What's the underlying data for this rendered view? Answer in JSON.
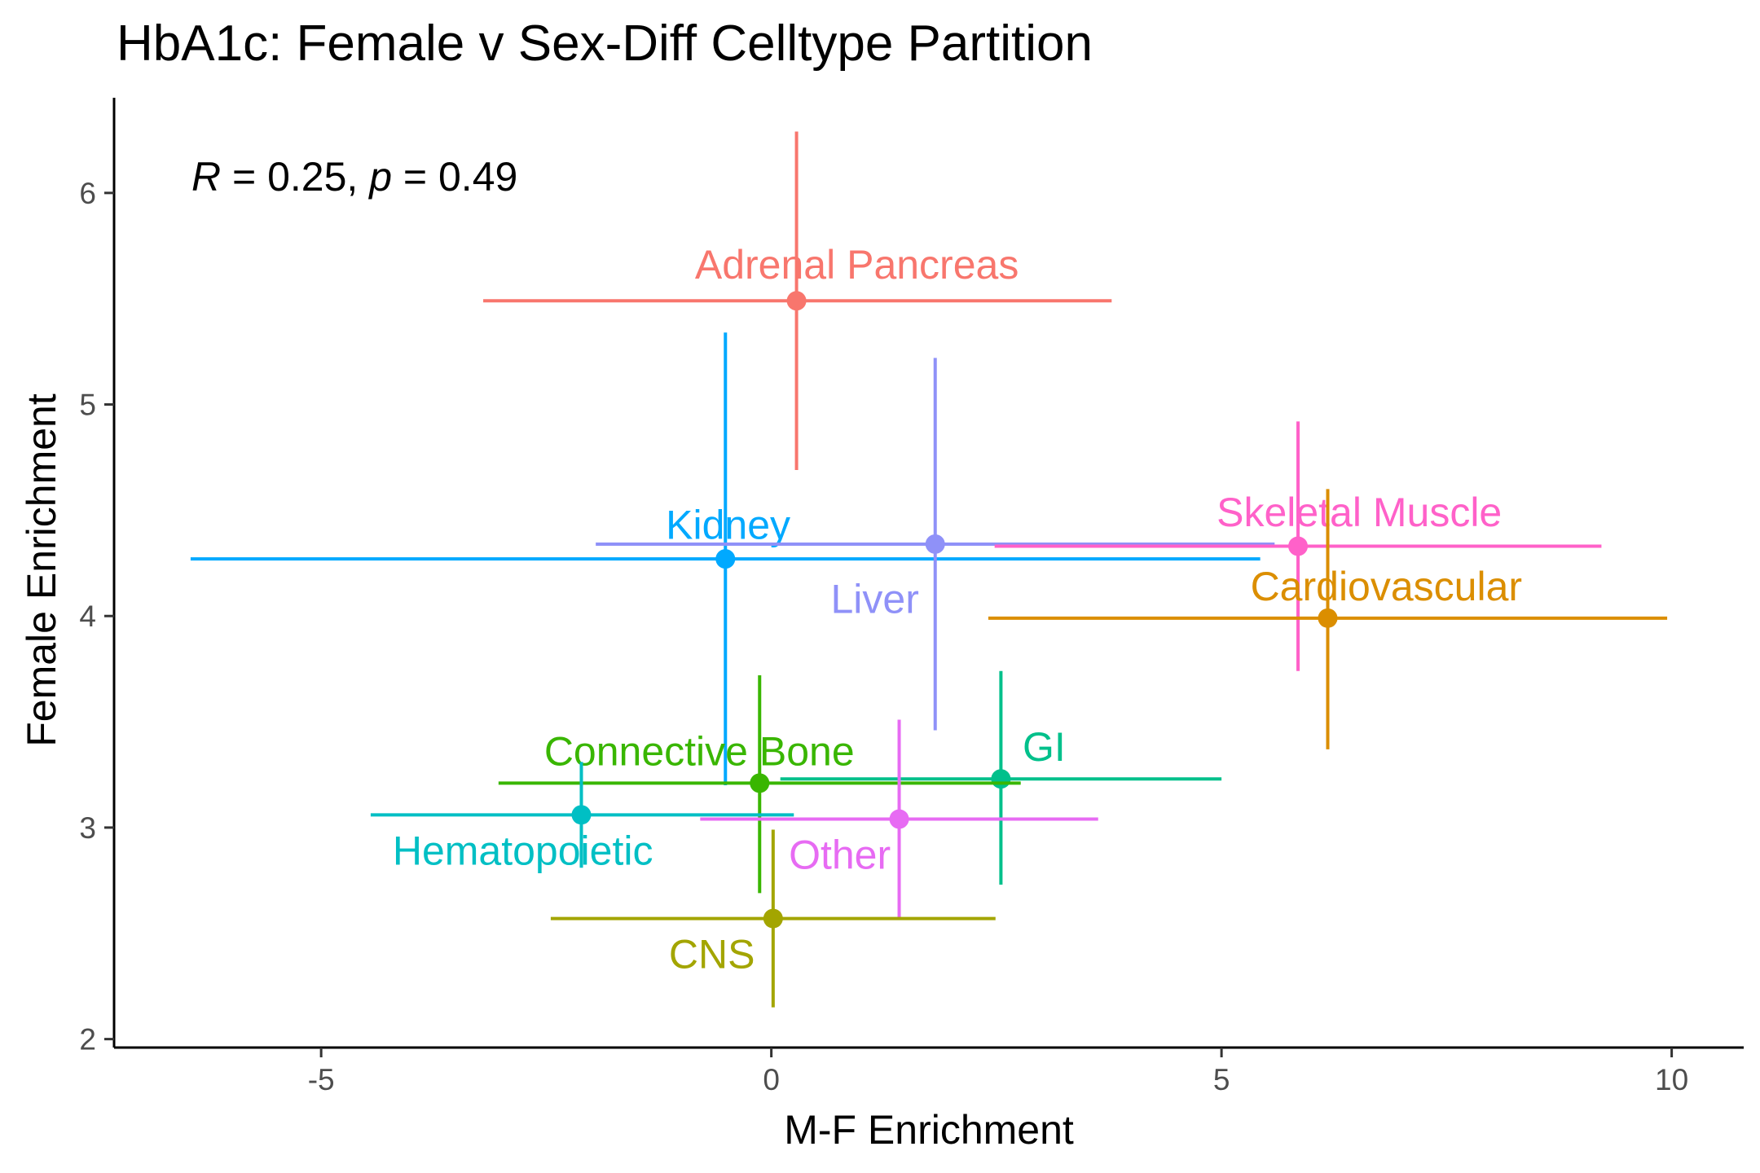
{
  "chart_data": {
    "type": "scatter",
    "title": "HbA1c: Female v Sex-Diff Celltype Partition",
    "xlabel": "M-F Enrichment",
    "ylabel": "Female Enrichment",
    "xlim": [
      -7.3,
      10.8
    ],
    "ylim": [
      1.96,
      6.45
    ],
    "x_ticks": [
      -5,
      0,
      5,
      10
    ],
    "y_ticks": [
      2,
      3,
      4,
      5,
      6
    ],
    "x_tick_labels": [
      "-5",
      "0",
      "5",
      "10"
    ],
    "y_tick_labels": [
      "2",
      "3",
      "4",
      "5",
      "6"
    ],
    "grid": false,
    "legend": "none",
    "annotation": {
      "r_symbol": "R",
      "r_text": " = 0.25, ",
      "p_symbol": "p",
      "p_text": " = 0.49"
    },
    "points": [
      {
        "label": "Adrenal Pancreas",
        "color": "#F8766D",
        "x": 0.28,
        "y": 5.49,
        "xmin": -3.2,
        "xmax": 3.78,
        "ymin": 4.69,
        "ymax": 6.29,
        "label_x": 0.95,
        "label_y": 5.66
      },
      {
        "label": "Kidney",
        "color": "#00A9FF",
        "x": -0.51,
        "y": 4.27,
        "xmin": -6.45,
        "xmax": 5.43,
        "ymin": 3.2,
        "ymax": 5.34,
        "label_x": -0.48,
        "label_y": 4.43
      },
      {
        "label": "Liver",
        "color": "#8F91F8",
        "x": 1.82,
        "y": 4.34,
        "xmin": -1.95,
        "xmax": 5.59,
        "ymin": 3.46,
        "ymax": 5.22,
        "label_x": 1.15,
        "label_y": 4.08
      },
      {
        "label": "Skeletal Muscle",
        "color": "#FF61C9",
        "x": 5.85,
        "y": 4.33,
        "xmin": 2.48,
        "xmax": 9.22,
        "ymin": 3.74,
        "ymax": 4.92,
        "label_x": 6.53,
        "label_y": 4.49
      },
      {
        "label": "Cardiovascular",
        "color": "#DB8E00",
        "x": 6.18,
        "y": 3.99,
        "xmin": 2.41,
        "xmax": 9.95,
        "ymin": 3.37,
        "ymax": 4.6,
        "label_x": 6.83,
        "label_y": 4.14
      },
      {
        "label": "GI",
        "color": "#00C08B",
        "x": 2.55,
        "y": 3.23,
        "xmin": 0.1,
        "xmax": 5.0,
        "ymin": 2.73,
        "ymax": 3.74,
        "label_x": 3.03,
        "label_y": 3.38
      },
      {
        "label": "Connective Bone",
        "color": "#39B600",
        "x": -0.13,
        "y": 3.21,
        "xmin": -3.03,
        "xmax": 2.77,
        "ymin": 2.69,
        "ymax": 3.72,
        "label_x": -0.8,
        "label_y": 3.36
      },
      {
        "label": "Hematopoietic",
        "color": "#00BFC4",
        "x": -2.11,
        "y": 3.06,
        "xmin": -4.45,
        "xmax": 0.25,
        "ymin": 2.81,
        "ymax": 3.31,
        "label_x": -2.76,
        "label_y": 2.89
      },
      {
        "label": "Other",
        "color": "#E76BF3",
        "x": 1.42,
        "y": 3.04,
        "xmin": -0.79,
        "xmax": 3.63,
        "ymin": 2.57,
        "ymax": 3.51,
        "label_x": 0.76,
        "label_y": 2.87
      },
      {
        "label": "CNS",
        "color": "#A3A500",
        "x": 0.02,
        "y": 2.57,
        "xmin": -2.45,
        "xmax": 2.49,
        "ymin": 2.15,
        "ymax": 2.99,
        "label_x": -0.66,
        "label_y": 2.4
      }
    ]
  }
}
